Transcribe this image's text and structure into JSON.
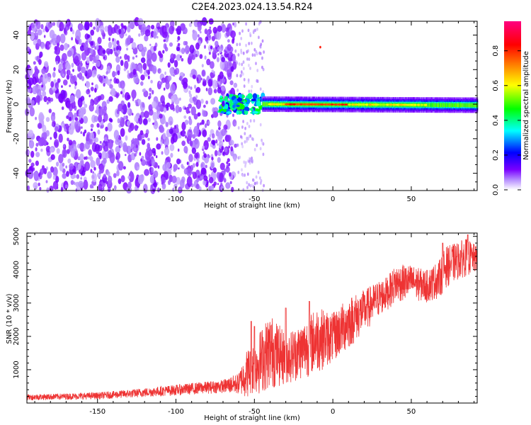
{
  "figure": {
    "title": "C2E4.2023.024.13.54.R24"
  },
  "chart_data": [
    {
      "type": "heatmap",
      "xlabel": "Height of straight line (km)",
      "ylabel": "Frequency (Hz)",
      "xlim": [
        -195,
        92
      ],
      "ylim": [
        -50,
        48
      ],
      "xticks": [
        -150,
        -100,
        -50,
        0,
        50
      ],
      "yticks": [
        -40,
        -20,
        0,
        20,
        40
      ],
      "colorbar": {
        "label": "Normalized spectral amplitude",
        "range": [
          0,
          0.97
        ],
        "ticks": [
          0.0,
          0.2,
          0.4,
          0.6,
          0.8
        ],
        "colors": [
          "#ffffff",
          "#7a00ff",
          "#0000ff",
          "#00ffff",
          "#00ff00",
          "#ffff00",
          "#ff8000",
          "#ff0000",
          "#ff0080"
        ]
      },
      "regions": [
        {
          "x_range": [
            -195,
            -62
          ],
          "freq_range": [
            -50,
            48
          ],
          "amplitude": 0.05,
          "pattern": "speckle noise, violet"
        },
        {
          "x_range": [
            -62,
            -44
          ],
          "freq_range": [
            -50,
            48
          ],
          "amplitude": 0.03,
          "pattern": "faint sparse speckle"
        },
        {
          "x_range": [
            -72,
            -45
          ],
          "freq_range": [
            -5,
            5
          ],
          "amplitude": 0.45,
          "pattern": "blob cluster"
        },
        {
          "x_range": [
            -45,
            92
          ],
          "freq_range": [
            -3,
            3
          ],
          "amplitude": 0.6,
          "pattern": "continuous band centred near 0 Hz, descending slightly to -1 Hz"
        },
        {
          "x_range": [
            -30,
            10
          ],
          "freq_range": [
            -1,
            1
          ],
          "amplitude": 0.85,
          "pattern": "red peaks"
        }
      ],
      "grid": false
    },
    {
      "type": "line",
      "xlabel": "Height of straight line (km)",
      "ylabel": "SNR (10 * v/v)",
      "xlim": [
        -195,
        92
      ],
      "ylim": [
        0,
        5100
      ],
      "xticks": [
        -150,
        -100,
        -50,
        0,
        50
      ],
      "yticks": [
        1000,
        2000,
        3000,
        4000,
        5000
      ],
      "color": "#ee3333",
      "envelope": {
        "x": [
          -195,
          -170,
          -150,
          -130,
          -110,
          -90,
          -70,
          -60,
          -55,
          -50,
          -40,
          -30,
          -20,
          -10,
          0,
          10,
          20,
          30,
          35,
          40,
          50,
          55,
          60,
          68,
          72,
          78,
          85,
          92
        ],
        "low": [
          80,
          100,
          110,
          150,
          200,
          250,
          300,
          250,
          150,
          200,
          400,
          550,
          700,
          900,
          1200,
          1600,
          2100,
          2600,
          2800,
          3000,
          3100,
          3050,
          3000,
          3150,
          3450,
          3650,
          3800,
          3900
        ],
        "high": [
          260,
          290,
          320,
          400,
          500,
          600,
          700,
          900,
          1600,
          1900,
          2700,
          2100,
          2400,
          2900,
          2700,
          3200,
          3400,
          3700,
          3800,
          4150,
          4150,
          4050,
          4000,
          4300,
          4700,
          4800,
          4950,
          4700
        ]
      },
      "spikes": [
        {
          "x": -52,
          "value": 2450
        },
        {
          "x": -50,
          "value": 2300
        },
        {
          "x": -30,
          "value": 2850
        },
        {
          "x": -15,
          "value": 3050
        },
        {
          "x": 70,
          "value": 4800
        },
        {
          "x": 86,
          "value": 5050
        }
      ],
      "grid": false
    }
  ]
}
